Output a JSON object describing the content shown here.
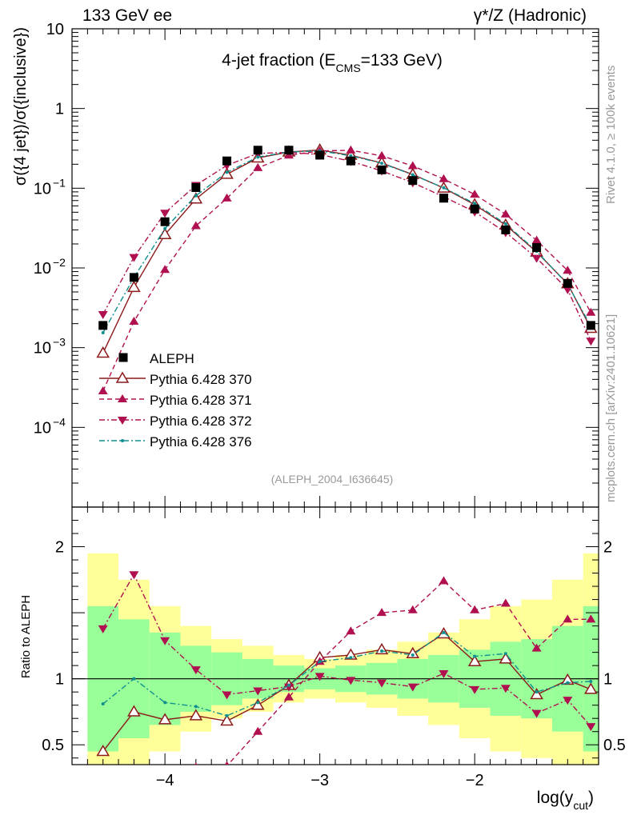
{
  "header": {
    "left": "133 GeV ee",
    "right": "γ*/Z (Hadronic)"
  },
  "side_text": {
    "rivet": "Rivet 4.1.0, ≥ 100k events",
    "mcplots": "mcplots.cern.ch [arXiv:2401.10621]"
  },
  "chart_data": {
    "type": "line",
    "title_main": "4-jet fraction (E",
    "title_sub": "CMS",
    "title_tail": "=133 GeV)",
    "analysis_id": "(ALEPH_2004_I636645)",
    "ylabel": "σ({4 jet})/σ({inclusive})",
    "xlabel_main": "log(y",
    "xlabel_sub": "cut",
    "xlabel_tail": ")",
    "ratio_ylabel": "Ratio to ALEPH",
    "xlim": [
      -4.6,
      -1.2
    ],
    "ylim_log10": [
      -5,
      1
    ],
    "ratio_ylim": [
      0.35,
      2.3
    ],
    "x_ticks": [
      {
        "value": -4,
        "label": "−4"
      },
      {
        "value": -3,
        "label": "−3"
      },
      {
        "value": -2,
        "label": "−2"
      }
    ],
    "y_ticks": [
      {
        "exp": 1,
        "label": "10"
      },
      {
        "exp": 0,
        "label": "1"
      },
      {
        "exp": -1,
        "label": "10",
        "sup": "−1"
      },
      {
        "exp": -2,
        "label": "10",
        "sup": "−2"
      },
      {
        "exp": -3,
        "label": "10",
        "sup": "−3"
      },
      {
        "exp": -4,
        "label": "10",
        "sup": "−4"
      }
    ],
    "ratio_ticks": [
      {
        "value": 0.5,
        "label": "0.5"
      },
      {
        "value": 1,
        "label": "1"
      },
      {
        "value": 2,
        "label": "2"
      }
    ],
    "x": [
      -4.4,
      -4.2,
      -4.0,
      -3.8,
      -3.6,
      -3.4,
      -3.2,
      -3.0,
      -2.8,
      -2.6,
      -2.4,
      -2.2,
      -2.0,
      -1.8,
      -1.6,
      -1.4,
      -1.25
    ],
    "bin_edges": [
      -4.5,
      -4.3,
      -4.1,
      -3.9,
      -3.7,
      -3.5,
      -3.3,
      -3.1,
      -2.9,
      -2.7,
      -2.5,
      -2.3,
      -2.1,
      -1.9,
      -1.7,
      -1.5,
      -1.3,
      -1.15
    ],
    "band_inner": [
      0.55,
      0.45,
      0.35,
      0.25,
      0.2,
      0.15,
      0.1,
      0.08,
      0.1,
      0.12,
      0.15,
      0.18,
      0.22,
      0.28,
      0.3,
      0.4,
      0.55
    ],
    "band_outer": [
      0.95,
      0.75,
      0.55,
      0.4,
      0.3,
      0.25,
      0.18,
      0.15,
      0.18,
      0.22,
      0.28,
      0.35,
      0.45,
      0.55,
      0.6,
      0.75,
      0.95
    ],
    "data": {
      "name": "ALEPH",
      "values": [
        0.0019,
        0.0076,
        0.038,
        0.102,
        0.22,
        0.3,
        0.3,
        0.26,
        0.22,
        0.17,
        0.125,
        0.075,
        0.055,
        0.03,
        0.018,
        0.0064,
        0.0019
      ]
    },
    "series": [
      {
        "name": "Pythia 6.428 370",
        "color": "#8b1a1a",
        "style": "solid",
        "marker": "open-triangle-up",
        "ratios": [
          0.45,
          0.75,
          0.69,
          0.72,
          0.68,
          0.8,
          0.95,
          1.16,
          1.18,
          1.22,
          1.19,
          1.34,
          1.13,
          1.15,
          0.88,
          0.99,
          0.92
        ]
      },
      {
        "name": "Pythia 6.428 371",
        "color": "#b0104f",
        "style": "dashed",
        "marker": "filled-triangle-up",
        "ratios": [
          0.15,
          0.28,
          0.25,
          0.33,
          0.34,
          0.6,
          0.86,
          1.13,
          1.36,
          1.5,
          1.52,
          1.74,
          1.52,
          1.57,
          1.23,
          1.45,
          1.45
        ]
      },
      {
        "name": "Pythia 6.428 372",
        "color": "#b0104f",
        "style": "dashdot",
        "marker": "filled-triangle-down",
        "ratios": [
          1.38,
          1.79,
          1.29,
          1.07,
          0.88,
          0.91,
          0.94,
          1.02,
          0.99,
          0.97,
          0.94,
          1.04,
          0.92,
          0.93,
          0.74,
          0.84,
          0.64
        ]
      },
      {
        "name": "Pythia 6.428 376",
        "color": "#108f8f",
        "style": "dashdot",
        "marker": "dot",
        "ratios": [
          0.81,
          1.0,
          0.82,
          0.79,
          0.72,
          0.82,
          0.95,
          1.13,
          1.16,
          1.21,
          1.18,
          1.35,
          1.17,
          1.19,
          0.9,
          0.97,
          0.98
        ]
      }
    ]
  }
}
